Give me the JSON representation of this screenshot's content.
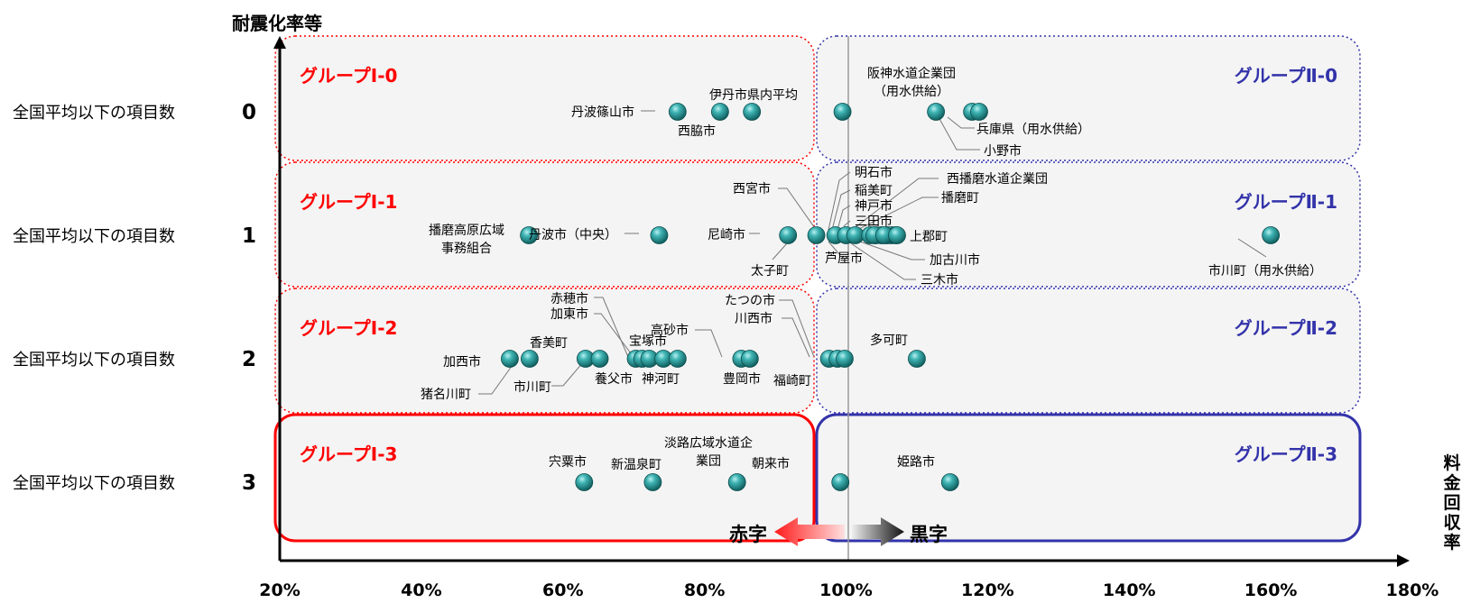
{
  "chart_data": {
    "type": "scatter",
    "y_axis_title": "耐震化率等",
    "x_axis_title": [
      "料",
      "金",
      "回",
      "収",
      "率"
    ],
    "xlim": [
      0.2,
      1.8
    ],
    "x_ticks": [
      {
        "value": 0.2,
        "label": "20%"
      },
      {
        "value": 0.4,
        "label": "40%"
      },
      {
        "value": 0.6,
        "label": "60%"
      },
      {
        "value": 0.8,
        "label": "80%"
      },
      {
        "value": 1.0,
        "label": "100%"
      },
      {
        "value": 1.2,
        "label": "120%"
      },
      {
        "value": 1.4,
        "label": "140%"
      },
      {
        "value": 1.6,
        "label": "160%"
      },
      {
        "value": 1.8,
        "label": "180%"
      }
    ],
    "y_categories": [
      {
        "value": 0,
        "label": "全国平均以下の項目数",
        "num": "0"
      },
      {
        "value": 1,
        "label": "全国平均以下の項目数",
        "num": "1"
      },
      {
        "value": 2,
        "label": "全国平均以下の項目数",
        "num": "2"
      },
      {
        "value": 3,
        "label": "全国平均以下の項目数",
        "num": "3"
      }
    ],
    "groups": [
      {
        "label": "グループⅠ-0",
        "row": 0,
        "side": "left",
        "color": "#ff0000"
      },
      {
        "label": "グループⅠ-1",
        "row": 1,
        "side": "left",
        "color": "#ff0000"
      },
      {
        "label": "グループⅠ-2",
        "row": 2,
        "side": "left",
        "color": "#ff0000"
      },
      {
        "label": "グループⅠ-3",
        "row": 3,
        "side": "left",
        "color": "#ff0000"
      },
      {
        "label": "グループⅡ-0",
        "row": 0,
        "side": "right",
        "color": "#3333aa"
      },
      {
        "label": "グループⅡ-1",
        "row": 1,
        "side": "right",
        "color": "#3333aa"
      },
      {
        "label": "グループⅡ-2",
        "row": 2,
        "side": "right",
        "color": "#3333aa"
      },
      {
        "label": "グループⅡ-3",
        "row": 3,
        "side": "right",
        "color": "#3333aa"
      }
    ],
    "deficit_label": "赤字",
    "surplus_label": "黒字",
    "colors": {
      "left": "#ff0000",
      "right": "#3333aa",
      "point": "#1e8f8f"
    },
    "points": [
      {
        "x": 0.762,
        "y": 0,
        "label": [
          "丹波篠山市"
        ]
      },
      {
        "x": 0.822,
        "y": 0,
        "label": [
          "西脇市"
        ]
      },
      {
        "x": 0.867,
        "y": 0,
        "label": []
      },
      {
        "x": 0.995,
        "y": 0,
        "label": [
          "伊丹市県内平均"
        ]
      },
      {
        "x": 1.127,
        "y": 0,
        "label": [
          "阪神水道企業団",
          "（用水供給）"
        ]
      },
      {
        "x": 1.178,
        "y": 0,
        "label": [
          "小野市"
        ]
      },
      {
        "x": 1.188,
        "y": 0,
        "label": [
          "兵庫県（用水供給）"
        ]
      },
      {
        "x": 0.552,
        "y": 1,
        "label": [
          "播磨高原広域",
          "事務組合"
        ]
      },
      {
        "x": 0.736,
        "y": 1,
        "label": [
          "丹波市（中央）"
        ]
      },
      {
        "x": 0.918,
        "y": 1,
        "label": [
          "尼崎市"
        ]
      },
      {
        "x": 0.958,
        "y": 1,
        "label": [
          "太子町"
        ]
      },
      {
        "x": 0.985,
        "y": 1,
        "label": []
      },
      {
        "x": 1.0,
        "y": 1,
        "label": [
          "西宮市"
        ]
      },
      {
        "x": 1.013,
        "y": 1,
        "label": [
          "芦屋市"
        ]
      },
      {
        "x": 1.034,
        "y": 1,
        "label": [
          "明石市"
        ]
      },
      {
        "x": 1.042,
        "y": 1,
        "label": [
          "稲美町"
        ]
      },
      {
        "x": 1.05,
        "y": 1,
        "label": [
          "神戸市"
        ]
      },
      {
        "x": 1.058,
        "y": 1,
        "label": [
          "三田市"
        ]
      },
      {
        "x": 1.064,
        "y": 1,
        "label": [
          "西播磨水道企業団"
        ]
      },
      {
        "x": 1.07,
        "y": 1,
        "label": [
          "播磨町"
        ]
      },
      {
        "x": 1.04,
        "y": 1,
        "label": [
          "加古川市"
        ]
      },
      {
        "x": 1.054,
        "y": 1,
        "label": [
          "三木市"
        ]
      },
      {
        "x": 1.072,
        "y": 1,
        "label": [
          "上郡町"
        ]
      },
      {
        "x": 1.6,
        "y": 1,
        "label": [
          "市川町（用水供給）"
        ]
      },
      {
        "x": 0.525,
        "y": 2,
        "label": [
          "加西市"
        ]
      },
      {
        "x": 0.553,
        "y": 2,
        "label": [
          "猪名川町"
        ]
      },
      {
        "x": 0.632,
        "y": 2,
        "label": [
          "香美町"
        ]
      },
      {
        "x": 0.652,
        "y": 2,
        "label": [
          "市川町"
        ]
      },
      {
        "x": 0.703,
        "y": 2,
        "label": [
          "養父市"
        ]
      },
      {
        "x": 0.712,
        "y": 2,
        "label": [
          "赤穂市"
        ]
      },
      {
        "x": 0.722,
        "y": 2,
        "label": [
          "加東市"
        ]
      },
      {
        "x": 0.742,
        "y": 2,
        "label": [
          "宝塚市"
        ]
      },
      {
        "x": 0.762,
        "y": 2,
        "label": [
          "神河町"
        ]
      },
      {
        "x": 0.852,
        "y": 2,
        "label": [
          "豊岡市"
        ]
      },
      {
        "x": 0.864,
        "y": 2,
        "label": [
          "高砂市"
        ]
      },
      {
        "x": 0.976,
        "y": 2,
        "label": [
          "福崎町"
        ]
      },
      {
        "x": 0.988,
        "y": 2,
        "label": [
          "川西市"
        ]
      },
      {
        "x": 0.998,
        "y": 2,
        "label": [
          "たつの市"
        ]
      },
      {
        "x": 1.1,
        "y": 2,
        "label": [
          "多可町"
        ]
      },
      {
        "x": 0.63,
        "y": 3,
        "label": [
          "宍粟市"
        ]
      },
      {
        "x": 0.727,
        "y": 3,
        "label": [
          "新温泉町"
        ]
      },
      {
        "x": 0.846,
        "y": 3,
        "label": [
          "淡路広域水道企",
          "業団"
        ]
      },
      {
        "x": 0.992,
        "y": 3,
        "label": [
          "朝来市"
        ]
      },
      {
        "x": 1.147,
        "y": 3,
        "label": [
          "姫路市"
        ]
      }
    ]
  }
}
